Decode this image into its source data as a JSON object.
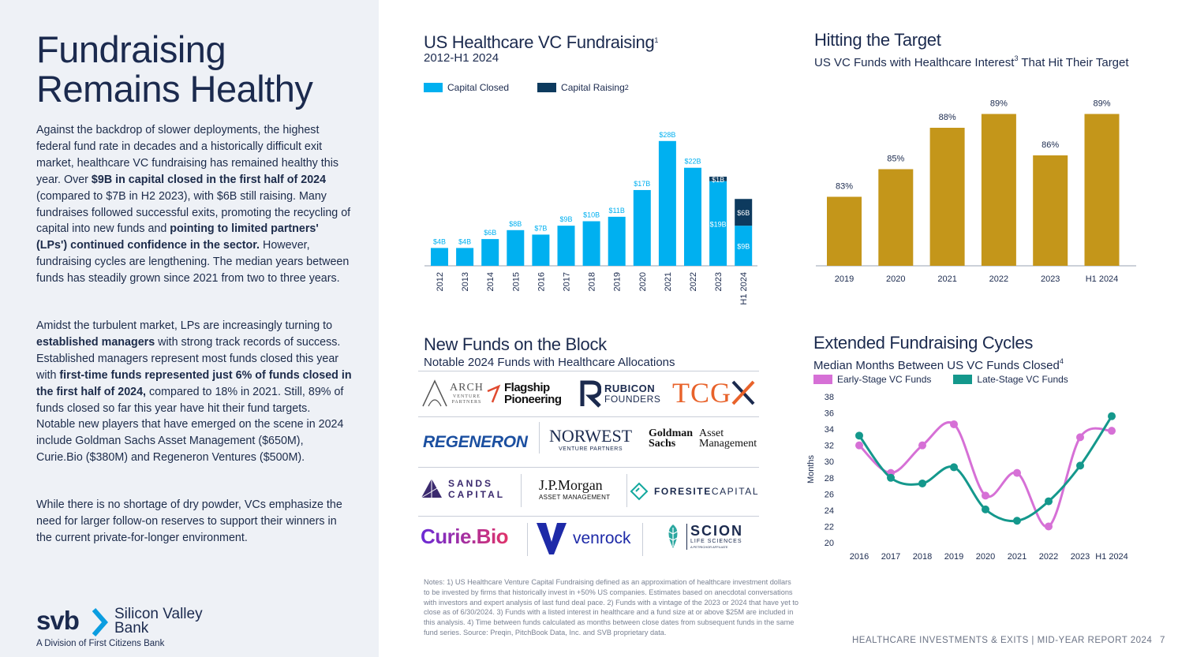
{
  "left": {
    "title": "Fundraising Remains Healthy",
    "para1": [
      {
        "t": "Against the backdrop of slower deployments, the highest federal fund rate in decades and a historically difficult exit market, healthcare VC fundraising has remained healthy this year. Over ",
        "b": false
      },
      {
        "t": "$9B in capital closed in the first half of 2024",
        "b": true
      },
      {
        "t": " (compared to $7B in H2 2023), with $6B still raising. Many fundraises followed successful exits, promoting the recycling of capital into new funds and ",
        "b": false
      },
      {
        "t": "pointing to limited partners' (LPs') continued confidence in the sector.",
        "b": true
      },
      {
        "t": " However, fundraising cycles are lengthening. The median years between funds has steadily grown since 2021 from two to three years.",
        "b": false
      }
    ],
    "para2": [
      {
        "t": "Amidst the turbulent market, LPs are increasingly turning to ",
        "b": false
      },
      {
        "t": "established managers",
        "b": true
      },
      {
        "t": " with strong track records of success. Established managers represent most funds closed this year with ",
        "b": false
      },
      {
        "t": "first-time funds represented just 6% of funds closed in the first half of 2024,",
        "b": true
      },
      {
        "t": " compared to 18% in 2021. Still, 89% of funds closed so far this year have hit their fund targets. Notable new players that have emerged on the scene in 2024 include Goldman Sachs Asset Management ($650M), Curie.Bio ($380M) and Regeneron Ventures ($500M).",
        "b": false
      }
    ],
    "para3": [
      {
        "t": "While there is no shortage of dry powder, VCs emphasize the need for larger follow-on reserves to support their winners in the current private-for-longer environment.",
        "b": false
      }
    ],
    "logo": {
      "wordmark": "svb",
      "name_line1": "Silicon Valley",
      "name_line2": "Bank",
      "division": "A Division of First Citizens Bank"
    }
  },
  "chart1_header": {
    "title": "US Healthcare VC Fundraising",
    "title_sup": "1",
    "subtitle": "2012-H1 2024",
    "legend_closed": "Capital Closed",
    "legend_raising": "Capital Raising",
    "legend_raising_sup": "2"
  },
  "chart2_header": {
    "title": "Hitting the Target",
    "subtitle": "US VC Funds with Healthcare Interest",
    "subtitle_sup": "3",
    "subtitle_tail": " That Hit Their Target"
  },
  "chart3_header": {
    "title": "Extended Fundraising Cycles",
    "subtitle": "Median Months Between US VC Funds Closed",
    "subtitle_sup": "4",
    "legend_early": "Early-Stage VC Funds",
    "legend_late": "Late-Stage VC Funds",
    "ylabel": "Months"
  },
  "funds": {
    "title": "New Funds on the Block",
    "subtitle": "Notable 2024 Funds with Healthcare Allocations",
    "logos": {
      "arch_main": "ARCH",
      "arch_sub1": "VENTURE",
      "arch_sub2": "PARTNERS",
      "flagship1": "Flagship",
      "flagship2": "Pioneering",
      "rubicon1": "RUBICON",
      "rubicon2": "FOUNDERS",
      "tcg": "TCG",
      "regeneron": "REGENERON",
      "norwest1": "NORWEST",
      "norwest2": "VENTURE PARTNERS",
      "gs1": "Goldman",
      "gs2": "Sachs",
      "gs3": "Asset",
      "gs4": "Management",
      "sands1": "SANDS",
      "sands2": "CAPITAL",
      "jpm1": "J.P.Morgan",
      "jpm2": "ASSET MANAGEMENT",
      "foresite1": "FORESITE",
      "foresite2": "CAPITAL",
      "curie": "Curie.Bio",
      "venrock": "venrock",
      "scion1": "SCION",
      "scion2": "LIFE SCIENCES",
      "scion3": "A PETRICHOR AFFILIATE"
    }
  },
  "notes": "Notes: 1) US Healthcare Venture Capital Fundraising defined as an approximation of healthcare investment dollars to be invested by firms that historically invest in +50% US companies. Estimates based on anecdotal conversations with investors and expert analysis of last fund deal pace. 2) Funds with a vintage of the 2023 or 2024 that have yet to close as of 6/30/2024. 3) Funds with a listed interest in healthcare and a fund size at or above $25M are included in this analysis. 4) Time between funds calculated as months between close dates from subsequent funds in the same fund series. Source: Preqin, PitchBook Data, Inc. and SVB proprietary data.",
  "footer": {
    "text": "HEALTHCARE INVESTMENTS & EXITS | MID-YEAR REPORT 2024",
    "page": "7"
  },
  "colors": {
    "navy": "#1b2a4e",
    "cyan": "#00b0f0",
    "dark_navy": "#0d3a5e",
    "gold": "#c4961a",
    "pink": "#d670d6",
    "teal": "#14988c"
  },
  "chart_data": [
    {
      "type": "bar",
      "title": "US Healthcare VC Fundraising",
      "subtitle": "2012-H1 2024",
      "categories": [
        "2012",
        "2013",
        "2014",
        "2015",
        "2016",
        "2017",
        "2018",
        "2019",
        "2020",
        "2021",
        "2022",
        "2023",
        "H1 2024"
      ],
      "series": [
        {
          "name": "Capital Closed",
          "values": [
            4,
            4,
            6,
            8,
            7,
            9,
            10,
            11,
            17,
            28,
            22,
            19,
            9
          ],
          "labels": [
            "$4B",
            "$4B",
            "$6B",
            "$8B",
            "$7B",
            "$9B",
            "$10B",
            "$11B",
            "$17B",
            "$28B",
            "$22B",
            "$19B",
            "$9B"
          ]
        },
        {
          "name": "Capital Raising",
          "values": [
            0,
            0,
            0,
            0,
            0,
            0,
            0,
            0,
            0,
            0,
            0,
            1,
            6
          ],
          "labels": [
            "",
            "",
            "",
            "",
            "",
            "",
            "",
            "",
            "",
            "",
            "",
            "$1B",
            "$6B"
          ]
        }
      ],
      "stacked": true,
      "ylim": [
        0,
        30
      ]
    },
    {
      "type": "bar",
      "title": "Hitting the Target",
      "subtitle": "US VC Funds with Healthcare Interest That Hit Their Target",
      "categories": [
        "2019",
        "2020",
        "2021",
        "2022",
        "2023",
        "H1 2024"
      ],
      "values": [
        83,
        85,
        88,
        89,
        86,
        89
      ],
      "labels": [
        "83%",
        "85%",
        "88%",
        "89%",
        "86%",
        "89%"
      ],
      "ylim": [
        78,
        90
      ]
    },
    {
      "type": "line",
      "title": "Extended Fundraising Cycles",
      "subtitle": "Median Months Between US VC Funds Closed",
      "x": [
        "2016",
        "2017",
        "2018",
        "2019",
        "2020",
        "2021",
        "2022",
        "2023",
        "H1 2024"
      ],
      "series": [
        {
          "name": "Early-Stage VC Funds",
          "values": [
            32,
            28.6,
            32,
            34.6,
            25.8,
            28.6,
            22,
            33,
            33.8
          ]
        },
        {
          "name": "Late-Stage VC Funds",
          "values": [
            33.2,
            28,
            27.3,
            29.3,
            24.1,
            22.7,
            25.1,
            29.5,
            35.6
          ]
        }
      ],
      "ylabel": "Months",
      "ylim": [
        20,
        38
      ],
      "yticks": [
        20,
        22,
        24,
        26,
        28,
        30,
        32,
        34,
        36,
        38
      ]
    }
  ]
}
